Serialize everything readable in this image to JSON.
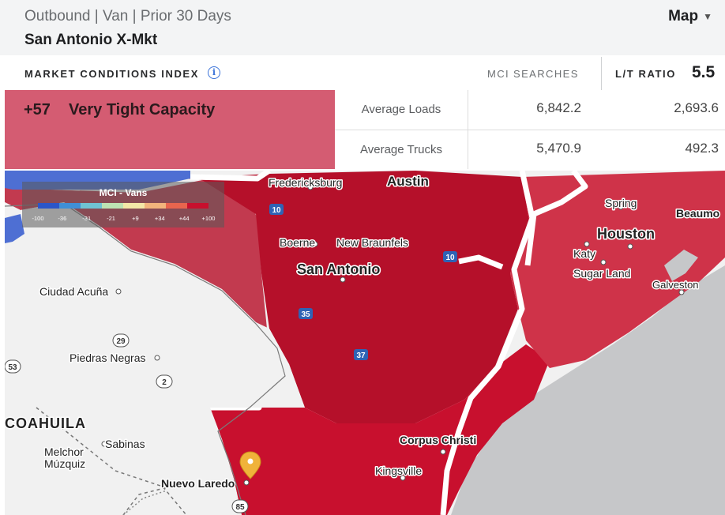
{
  "header": {
    "subtitle": "Outbound | Van | Prior 30 Days",
    "market": "San Antonio X-Mkt",
    "view_label": "Map"
  },
  "mci": {
    "title": "MARKET CONDITIONS INDEX",
    "score": "+57",
    "condition": "Very Tight Capacity",
    "searches_label": "MCI SEARCHES"
  },
  "ratio": {
    "label": "L/T RATIO",
    "value": "5.5"
  },
  "table": {
    "rows": [
      {
        "label": "Average Loads",
        "mci": "6,842.2",
        "lt": "2,693.6"
      },
      {
        "label": "Average Trucks",
        "mci": "5,470.9",
        "lt": "492.3"
      }
    ]
  },
  "legend": {
    "title": "MCI - Vans",
    "ticks": [
      "-100",
      "-36",
      "-31",
      "-21",
      "+9",
      "+34",
      "+44",
      "+100"
    ],
    "colors": [
      "#2b56c8",
      "#3f8fd6",
      "#6fc3d3",
      "#bde3b3",
      "#f3e7a7",
      "#f2b47c",
      "#e8654e",
      "#c8102e"
    ]
  },
  "map": {
    "cities": {
      "fredericksburg": "Fredericksburg",
      "austin": "Austin",
      "boerne": "Boerne",
      "new_braunfels": "New Braunfels",
      "san_antonio": "San Antonio",
      "spring": "Spring",
      "beaumont": "Beaumo",
      "houston": "Houston",
      "katy": "Katy",
      "sugar_land": "Sugar Land",
      "galveston": "Galveston",
      "ciudad_acuna": "Ciudad Acuña",
      "piedras_negras": "Piedras Negras",
      "coahuila": "COAHUILA",
      "sabinas": "Sabinas",
      "melchor_muzquiz_1": "Melchor",
      "melchor_muzquiz_2": "Múzquiz",
      "nuevo_laredo": "Nuevo Laredo",
      "corpus_christi": "Corpus Christi",
      "kingsville": "Kingsville"
    },
    "shields": {
      "i10a": "10",
      "i10b": "10",
      "i35": "35",
      "i37": "37",
      "mx29": "29",
      "mx2": "2",
      "mx53": "53",
      "us85": "85"
    },
    "colors": {
      "west_region": "#c23a4f",
      "south_region": "#c8102e",
      "core_region": "#b5102a",
      "houston_region": "#cf3349",
      "land": "#f1f1f1",
      "water": "#c6c7c9"
    }
  }
}
